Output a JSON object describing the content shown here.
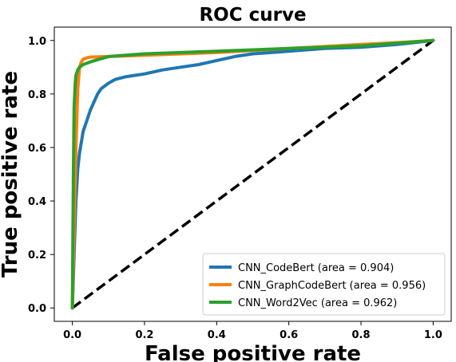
{
  "chart_data": {
    "type": "line",
    "title": "ROC curve",
    "xlabel": "False positive rate",
    "ylabel": "True positive rate",
    "xlim": [
      -0.05,
      1.05
    ],
    "ylim": [
      -0.05,
      1.05
    ],
    "xticks": [
      "0.0",
      "0.2",
      "0.4",
      "0.6",
      "0.8",
      "1.0"
    ],
    "yticks": [
      "0.0",
      "0.2",
      "0.4",
      "0.6",
      "0.8",
      "1.0"
    ],
    "grid": false,
    "legend_position": "lower-right",
    "series": [
      {
        "name": "CNN_CodeBert (area = 0.904)",
        "color": "#1f77b4",
        "x": [
          0.0,
          0.005,
          0.01,
          0.015,
          0.02,
          0.025,
          0.03,
          0.04,
          0.05,
          0.06,
          0.07,
          0.08,
          0.1,
          0.12,
          0.15,
          0.2,
          0.25,
          0.3,
          0.35,
          0.4,
          0.45,
          0.5,
          0.6,
          0.7,
          0.8,
          0.9,
          1.0
        ],
        "y": [
          0.0,
          0.2,
          0.4,
          0.52,
          0.58,
          0.62,
          0.66,
          0.7,
          0.74,
          0.77,
          0.8,
          0.82,
          0.84,
          0.855,
          0.865,
          0.875,
          0.89,
          0.9,
          0.91,
          0.925,
          0.94,
          0.95,
          0.96,
          0.97,
          0.975,
          0.985,
          1.0
        ]
      },
      {
        "name": "CNN_GraphCodeBert (area = 0.956)",
        "color": "#ff7f0e",
        "x": [
          0.0,
          0.005,
          0.01,
          0.015,
          0.02,
          0.025,
          0.03,
          0.04,
          0.05,
          0.1,
          0.2,
          0.4,
          0.6,
          0.8,
          0.9,
          1.0
        ],
        "y": [
          0.0,
          0.3,
          0.6,
          0.82,
          0.9,
          0.92,
          0.93,
          0.935,
          0.938,
          0.94,
          0.945,
          0.955,
          0.97,
          0.985,
          0.992,
          1.0
        ]
      },
      {
        "name": "CNN_Word2Vec (area = 0.962)",
        "color": "#2ca02c",
        "x": [
          0.0,
          0.003,
          0.005,
          0.008,
          0.01,
          0.015,
          0.02,
          0.03,
          0.05,
          0.1,
          0.2,
          0.3,
          0.4,
          0.6,
          0.8,
          0.9,
          1.0
        ],
        "y": [
          0.0,
          0.5,
          0.75,
          0.84,
          0.87,
          0.89,
          0.9,
          0.91,
          0.92,
          0.94,
          0.95,
          0.955,
          0.96,
          0.97,
          0.98,
          0.99,
          1.0
        ]
      }
    ],
    "reference_line": {
      "x": [
        0.0,
        1.0
      ],
      "y": [
        0.0,
        1.0
      ],
      "color": "#000000",
      "style": "dashed"
    }
  }
}
